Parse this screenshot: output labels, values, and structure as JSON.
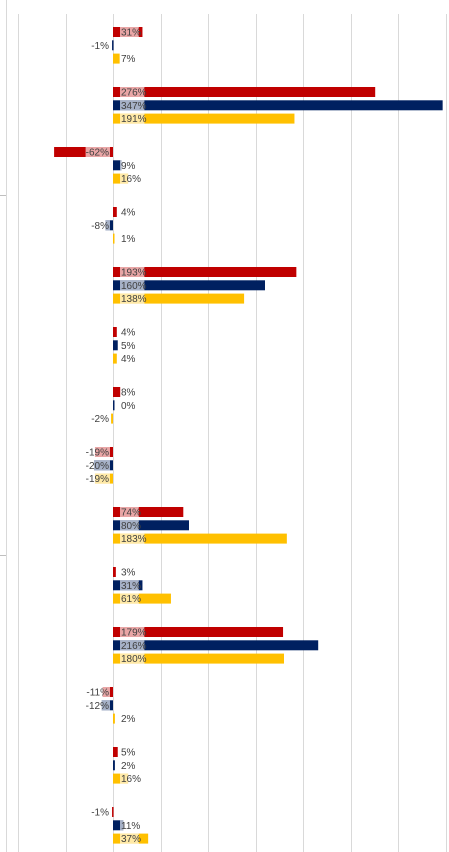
{
  "chart_data": {
    "type": "bar",
    "orientation": "horizontal",
    "grid": true,
    "xlim": [
      -1.2,
      3.5
    ],
    "colors": [
      "#C00000",
      "#002060",
      "#FFC000"
    ],
    "groups": [
      {
        "values": [
          0.31,
          -0.01,
          0.07
        ],
        "labels": [
          "31%",
          "-1%",
          "7%"
        ]
      },
      {
        "values": [
          2.76,
          3.47,
          1.91
        ],
        "labels": [
          "276%",
          "347%",
          "191%"
        ]
      },
      {
        "values": [
          -0.62,
          0.09,
          0.16
        ],
        "labels": [
          "-62%",
          "9%",
          "16%"
        ]
      },
      {
        "values": [
          0.04,
          -0.08,
          0.01
        ],
        "labels": [
          "4%",
          "-8%",
          "1%"
        ]
      },
      {
        "values": [
          1.93,
          1.6,
          1.38
        ],
        "labels": [
          "193%",
          "160%",
          "138%"
        ]
      },
      {
        "values": [
          0.04,
          0.05,
          0.04
        ],
        "labels": [
          "4%",
          "5%",
          "4%"
        ]
      },
      {
        "values": [
          0.08,
          0.0,
          -0.02
        ],
        "labels": [
          "8%",
          "0%",
          "-2%"
        ]
      },
      {
        "values": [
          -0.19,
          -0.2,
          -0.19
        ],
        "labels": [
          "-19%",
          "-20%",
          "-19%"
        ]
      },
      {
        "values": [
          0.74,
          0.8,
          1.83
        ],
        "labels": [
          "74%",
          "80%",
          "183%"
        ]
      },
      {
        "values": [
          0.03,
          0.31,
          0.61
        ],
        "labels": [
          "3%",
          "31%",
          "61%"
        ]
      },
      {
        "values": [
          1.79,
          2.16,
          1.8
        ],
        "labels": [
          "179%",
          "216%",
          "180%"
        ]
      },
      {
        "values": [
          -0.11,
          -0.12,
          0.02
        ],
        "labels": [
          "-11%",
          "-12%",
          "2%"
        ]
      },
      {
        "values": [
          0.05,
          0.02,
          0.16
        ],
        "labels": [
          "5%",
          "2%",
          "16%"
        ]
      },
      {
        "values": [
          -0.01,
          0.11,
          0.37
        ],
        "labels": [
          "-1%",
          "11%",
          "37%"
        ]
      }
    ]
  }
}
